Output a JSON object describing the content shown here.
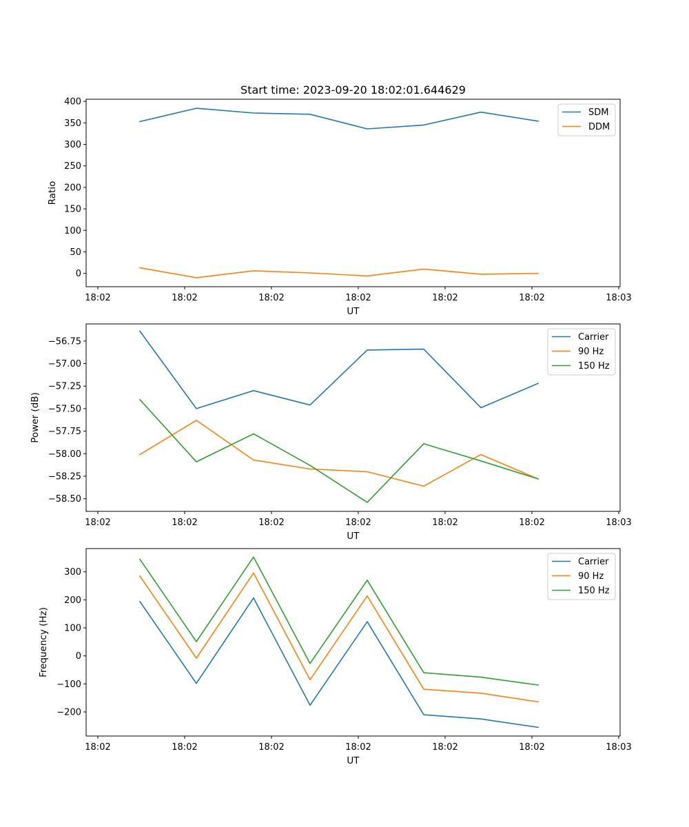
{
  "chart_data": [
    {
      "type": "line",
      "title": "Start time: 2023-09-20 18:02:01.644629",
      "xlabel": "UT",
      "ylabel": "Ratio",
      "x_tick_labels": [
        "18:02",
        "18:02",
        "18:02",
        "18:02",
        "18:02",
        "18:02",
        "18:03"
      ],
      "y_ticks": [
        0,
        50,
        100,
        150,
        200,
        250,
        300,
        350,
        400
      ],
      "ylim": [
        -31,
        405
      ],
      "legend": "top-right",
      "series": [
        {
          "name": "SDM",
          "color": "#1f77b4",
          "values": [
            353,
            384,
            373,
            370,
            336,
            345,
            375,
            354
          ]
        },
        {
          "name": "DDM",
          "color": "#ff7f0e",
          "values": [
            13,
            -10,
            6,
            1,
            -6,
            10,
            -2,
            0
          ]
        }
      ]
    },
    {
      "type": "line",
      "title": "",
      "xlabel": "UT",
      "ylabel": "Power (dB)",
      "x_tick_labels": [
        "18:02",
        "18:02",
        "18:02",
        "18:02",
        "18:02",
        "18:02",
        "18:03"
      ],
      "y_ticks": [
        -56.75,
        -57.0,
        -57.25,
        -57.5,
        -57.75,
        -58.0,
        -58.25,
        -58.5
      ],
      "y_tick_labels": [
        "−56.75",
        "−57.00",
        "−57.25",
        "−57.50",
        "−57.75",
        "−58.00",
        "−58.25",
        "−58.50"
      ],
      "ylim": [
        -58.64,
        -56.56
      ],
      "legend": "top-right",
      "series": [
        {
          "name": "Carrier",
          "color": "#1f77b4",
          "values": [
            -56.64,
            -57.5,
            -57.3,
            -57.46,
            -56.85,
            -56.84,
            -57.49,
            -57.22
          ]
        },
        {
          "name": "90 Hz",
          "color": "#ff7f0e",
          "values": [
            -58.01,
            -57.63,
            -58.07,
            -58.17,
            -58.2,
            -58.36,
            -58.01,
            -58.28
          ]
        },
        {
          "name": "150 Hz",
          "color": "#2ca02c",
          "values": [
            -57.4,
            -58.09,
            -57.78,
            -58.13,
            -58.54,
            -57.89,
            -58.08,
            -58.28
          ]
        }
      ]
    },
    {
      "type": "line",
      "title": "",
      "xlabel": "UT",
      "ylabel": "Frequency (Hz)",
      "x_tick_labels": [
        "18:02",
        "18:02",
        "18:02",
        "18:02",
        "18:02",
        "18:02",
        "18:03"
      ],
      "y_ticks": [
        300,
        200,
        100,
        0,
        -100,
        -200
      ],
      "y_tick_labels": [
        "300",
        "200",
        "100",
        "0",
        "−100",
        "−200"
      ],
      "ylim": [
        -286,
        383
      ],
      "legend": "top-right",
      "series": [
        {
          "name": "Carrier",
          "color": "#1f77b4",
          "values": [
            194,
            -98,
            207,
            -176,
            122,
            -210,
            -225,
            -255
          ]
        },
        {
          "name": "90 Hz",
          "color": "#ff7f0e",
          "values": [
            285,
            -8,
            296,
            -85,
            214,
            -119,
            -133,
            -164
          ]
        },
        {
          "name": "150 Hz",
          "color": "#2ca02c",
          "values": [
            345,
            51,
            353,
            -27,
            270,
            -60,
            -76,
            -104
          ]
        }
      ]
    }
  ]
}
